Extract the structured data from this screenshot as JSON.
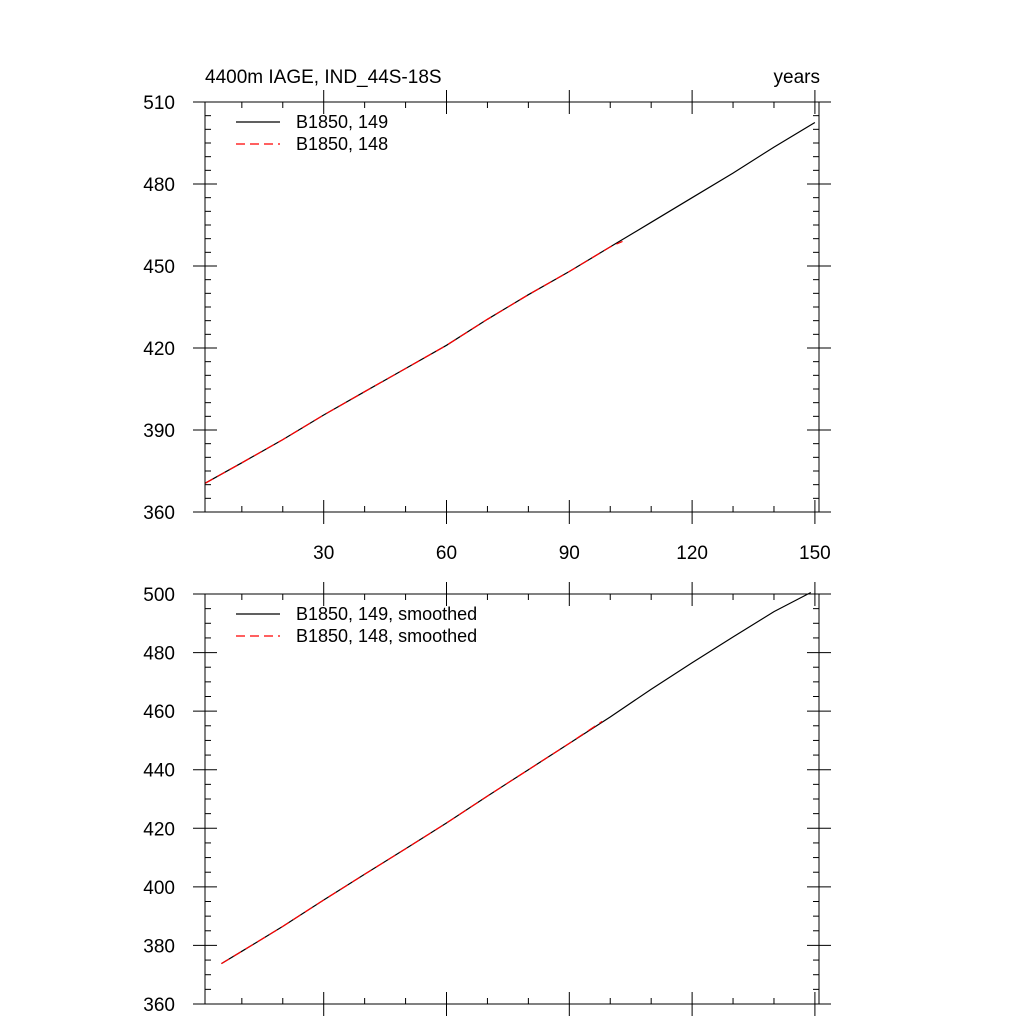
{
  "chart_data": [
    {
      "type": "line",
      "title": "4400m IAGE, IND_44S-18S",
      "units": "years",
      "xlim": [
        1,
        151
      ],
      "ylim": [
        360,
        510
      ],
      "x_ticks": [
        30,
        60,
        90,
        120,
        150
      ],
      "y_ticks": [
        360,
        390,
        420,
        450,
        480,
        510
      ],
      "x_minor_step": 10,
      "y_minor_step": 5,
      "grid": false,
      "legend_position": "top-left",
      "series": [
        {
          "name": "B1850, 149",
          "color": "#000000",
          "dash": "solid",
          "x": [
            1,
            10,
            20,
            30,
            40,
            50,
            60,
            70,
            80,
            90,
            100,
            110,
            120,
            130,
            140,
            150
          ],
          "y": [
            370.5,
            378,
            386.5,
            395.5,
            404,
            412.5,
            421,
            430.5,
            439.5,
            448,
            457,
            466,
            475,
            484,
            493.5,
            502.5
          ]
        },
        {
          "name": "B1850, 148",
          "color": "#ff0000",
          "dash": "dashed",
          "x": [
            1,
            10,
            20,
            30,
            40,
            50,
            60,
            70,
            80,
            90,
            100,
            103
          ],
          "y": [
            370.5,
            378,
            386.5,
            395.5,
            404,
            412.5,
            421,
            430.5,
            439.5,
            448,
            457,
            459
          ]
        }
      ]
    },
    {
      "type": "line",
      "xlim": [
        1,
        151
      ],
      "ylim": [
        360,
        500
      ],
      "x_ticks": [
        30,
        60,
        90,
        120,
        150
      ],
      "y_ticks": [
        360,
        380,
        400,
        420,
        440,
        460,
        480,
        500
      ],
      "x_minor_step": 10,
      "y_minor_step": 5,
      "show_x_tick_labels": false,
      "grid": false,
      "legend_position": "top-left",
      "series": [
        {
          "name": "B1850, 149, smoothed",
          "color": "#000000",
          "dash": "solid",
          "x": [
            5,
            10,
            20,
            30,
            40,
            50,
            60,
            70,
            80,
            90,
            100,
            110,
            120,
            130,
            140,
            149
          ],
          "y": [
            373.8,
            378,
            386.5,
            395.5,
            404.3,
            413,
            421.8,
            431,
            440,
            449,
            458,
            467.5,
            476.5,
            485.3,
            494,
            500.5
          ]
        },
        {
          "name": "B1850, 148, smoothed",
          "color": "#ff0000",
          "dash": "dashed",
          "x": [
            5,
            10,
            20,
            30,
            40,
            50,
            60,
            70,
            80,
            90,
            98
          ],
          "y": [
            373.8,
            378,
            386.5,
            395.5,
            404.3,
            413,
            421.8,
            431,
            440,
            449,
            456.5
          ]
        }
      ]
    }
  ]
}
